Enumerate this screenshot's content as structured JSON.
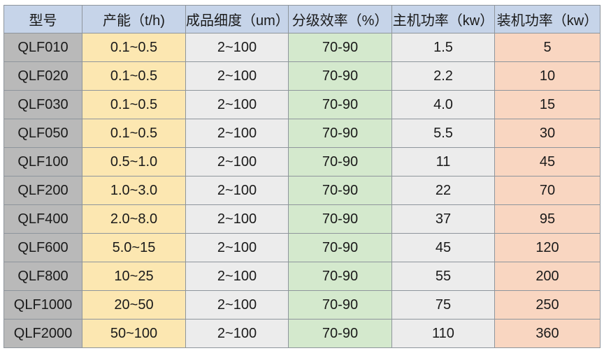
{
  "table": {
    "headers": [
      "型号",
      "产能（t/h)",
      "成品细度（um）",
      "分级效率（%）",
      "主机功率（kw）",
      "装机功率（kw）"
    ],
    "rows": [
      [
        "QLF010",
        "0.1~0.5",
        "2~100",
        "70-90",
        "1.5",
        "5"
      ],
      [
        "QLF020",
        "0.1~0.5",
        "2~100",
        "70-90",
        "2.2",
        "10"
      ],
      [
        "QLF030",
        "0.1~0.5",
        "2~100",
        "70-90",
        "4.0",
        "15"
      ],
      [
        "QLF050",
        "0.1~0.5",
        "2~100",
        "70-90",
        "5.5",
        "30"
      ],
      [
        "QLF100",
        "0.5~1.0",
        "2~100",
        "70-90",
        "11",
        "45"
      ],
      [
        "QLF200",
        "1.0~3.0",
        "2~100",
        "70-90",
        "22",
        "70"
      ],
      [
        "QLF400",
        "2.0~8.0",
        "2~100",
        "70-90",
        "37",
        "95"
      ],
      [
        "QLF600",
        "5.0~15",
        "2~100",
        "70-90",
        "45",
        "120"
      ],
      [
        "QLF800",
        "10~25",
        "2~100",
        "70-90",
        "55",
        "200"
      ],
      [
        "QLF1000",
        "20~50",
        "2~100",
        "70-90",
        "75",
        "250"
      ],
      [
        "QLF2000",
        "50~100",
        "2~100",
        "70-90",
        "110",
        "360"
      ]
    ]
  },
  "colors": {
    "header": "#c6d4e9",
    "model": "#b9b9b9",
    "capacity": "#fce7b1",
    "fineness": "#ececec",
    "efficiency": "#d4e9cd",
    "main_power": "#ececec",
    "installed_power": "#f9d6c1"
  }
}
